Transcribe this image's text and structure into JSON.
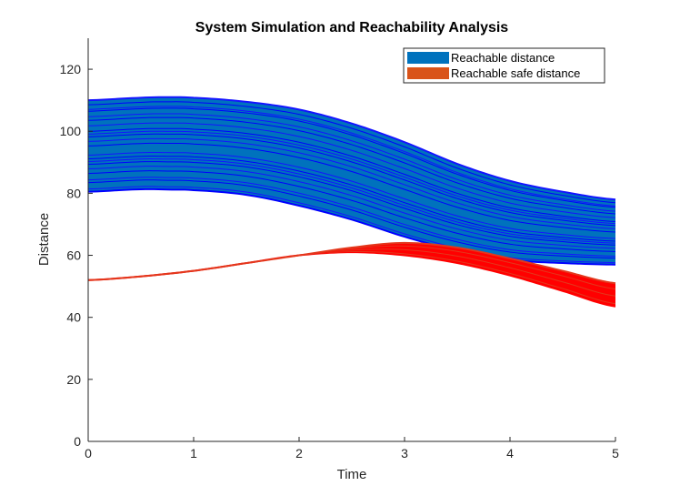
{
  "chart_data": {
    "type": "area",
    "title": "System Simulation and Reachability Analysis",
    "xlabel": "Time",
    "ylabel": "Distance",
    "xlim": [
      0,
      5
    ],
    "ylim": [
      0,
      130
    ],
    "xticks": [
      "0",
      "1",
      "2",
      "3",
      "4",
      "5"
    ],
    "yticks": [
      "0",
      "20",
      "40",
      "60",
      "80",
      "100",
      "120"
    ],
    "grid": false,
    "legend_position": "top-right",
    "legend": [
      {
        "label": "Reachable distance",
        "color": "#0072BD"
      },
      {
        "label": "Reachable safe distance",
        "color": "#D95319"
      }
    ],
    "series": [
      {
        "name": "Reachable distance",
        "fill_color": "#0072BD",
        "line_color": "#0000FF",
        "x": [
          0,
          0.5,
          0.75,
          1,
          1.5,
          2,
          2.5,
          3,
          3.5,
          4,
          4.5,
          5
        ],
        "upper": [
          110,
          110.8,
          111,
          110.8,
          109.5,
          107,
          102.5,
          96.5,
          89.5,
          84,
          80.5,
          78
        ],
        "lower": [
          80.5,
          81.3,
          81.2,
          81,
          79.5,
          76,
          71.5,
          66,
          61.5,
          58.5,
          57.5,
          57
        ]
      },
      {
        "name": "Reachable safe distance",
        "fill_color": "#FF0000",
        "line_color": "#FF0000",
        "x": [
          0,
          0.5,
          1,
          1.5,
          2,
          2.5,
          3,
          3.5,
          4,
          4.5,
          5
        ],
        "upper": [
          52,
          53.2,
          55,
          57.5,
          60,
          62.5,
          64,
          62.5,
          59,
          55,
          51
        ],
        "lower": [
          52,
          53.2,
          55,
          57.5,
          60,
          61,
          60,
          57.5,
          53.5,
          48.5,
          43.5
        ]
      }
    ]
  }
}
